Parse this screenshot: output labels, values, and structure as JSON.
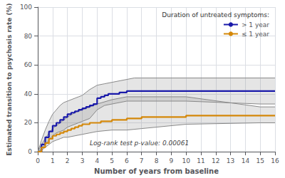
{
  "chart_data": {
    "type": "line",
    "xlabel": "Number of years from baseline",
    "ylabel": "Estimated transition to psychosis rate (%)",
    "legend_title": "Duration of untreated symptoms:",
    "legend": "upper right",
    "grid": true,
    "xlim": [
      0,
      16
    ],
    "ylim": [
      0,
      100
    ],
    "xticks": [
      0,
      1,
      2,
      3,
      4,
      5,
      6,
      7,
      8,
      9,
      10,
      11,
      12,
      13,
      14,
      15,
      16
    ],
    "yticks": [
      0,
      20,
      40,
      60,
      80,
      100
    ],
    "annotation": {
      "text": "Log-rank test p-value: 0.00061",
      "x": 3.5,
      "y": 6
    },
    "series": [
      {
        "name": "> 1 year",
        "color": "#1a1aaa",
        "line_style": "step",
        "x": [
          0,
          0.25,
          0.5,
          0.75,
          1.0,
          1.25,
          1.5,
          1.75,
          2.0,
          2.25,
          2.5,
          2.75,
          3.0,
          3.25,
          3.5,
          3.75,
          4.0,
          4.25,
          4.5,
          4.75,
          5.0,
          5.5,
          6.0,
          6.5,
          7.0,
          8.0,
          9.0,
          10.0,
          11.0,
          12.0,
          13.0,
          14.0,
          15.0,
          16.0
        ],
        "values": [
          0,
          5,
          10,
          14,
          18,
          20,
          22,
          24,
          26,
          27,
          28,
          29,
          30,
          31,
          32,
          33,
          37,
          38,
          39,
          40,
          40,
          41,
          42,
          42,
          42,
          42,
          42,
          42,
          42,
          42,
          42,
          42,
          42,
          42
        ],
        "ci": {
          "color": "#888888",
          "upper": {
            "x": [
              0,
              0.25,
              0.5,
              0.75,
              1.0,
              1.25,
              1.5,
              1.75,
              2.0,
              2.25,
              2.5,
              2.75,
              3.0,
              3.5,
              4.0,
              4.5,
              5.0,
              6.0,
              6.5,
              7.0,
              10.0,
              15.0,
              16.0
            ],
            "values": [
              0,
              8,
              15,
              21,
              26,
              29,
              32,
              34,
              35,
              36,
              37,
              38,
              39,
              43,
              46,
              47,
              48,
              50,
              51,
              51,
              51,
              51,
              51
            ]
          },
          "lower": {
            "x": [
              0,
              0.25,
              0.5,
              0.75,
              1.0,
              1.25,
              1.5,
              1.75,
              2.0,
              2.25,
              2.5,
              2.75,
              3.0,
              3.5,
              4.0,
              4.5,
              5.0,
              6.0,
              7.0,
              10.0,
              15.0,
              16.0
            ],
            "values": [
              0,
              2,
              5,
              8,
              11,
              13,
              14,
              15,
              17,
              18,
              19,
              20,
              21,
              23,
              29,
              32,
              33,
              35,
              35,
              35,
              33,
              33
            ]
          }
        }
      },
      {
        "name": "≤ 1 year",
        "color": "#d4880a",
        "line_style": "step",
        "x": [
          0,
          0.25,
          0.5,
          0.75,
          1.0,
          1.25,
          1.5,
          1.75,
          2.0,
          2.25,
          2.5,
          2.75,
          3.0,
          3.25,
          3.5,
          3.75,
          4.0,
          4.25,
          4.5,
          5.0,
          5.5,
          6.0,
          6.5,
          7.0,
          8.0,
          9.0,
          10.0,
          11.0,
          12.0,
          13.0,
          14.0,
          15.0,
          16.0
        ],
        "values": [
          0,
          3,
          6,
          9,
          11,
          12,
          13,
          14,
          15,
          16,
          17,
          18,
          19,
          19,
          20,
          20,
          20,
          21,
          21,
          22,
          22,
          23,
          23,
          24,
          24,
          24,
          25,
          25,
          25,
          25,
          25,
          25,
          25
        ],
        "ci": {
          "color": "#888888",
          "upper": {
            "x": [
              0,
              0.25,
              0.5,
              0.75,
              1.0,
              1.25,
              1.5,
              1.75,
              2.0,
              2.5,
              3.0,
              3.5,
              4.0,
              5.0,
              6.0,
              7.0,
              10.0,
              15.0,
              16.0
            ],
            "values": [
              0,
              5,
              9,
              13,
              16,
              18,
              20,
              22,
              24,
              27,
              29,
              31,
              33,
              36,
              38,
              38,
              38,
              31,
              31
            ]
          },
          "lower": {
            "x": [
              0,
              0.25,
              0.5,
              0.75,
              1.0,
              1.25,
              1.5,
              1.75,
              2.0,
              2.5,
              3.0,
              3.5,
              4.0,
              5.0,
              6.0,
              7.0,
              10.0,
              15.0,
              16.0
            ],
            "values": [
              0,
              1,
              3,
              5,
              7,
              8,
              9,
              10,
              10,
              11,
              12,
              13,
              14,
              15,
              15,
              16,
              19,
              20,
              20
            ]
          }
        }
      }
    ]
  }
}
